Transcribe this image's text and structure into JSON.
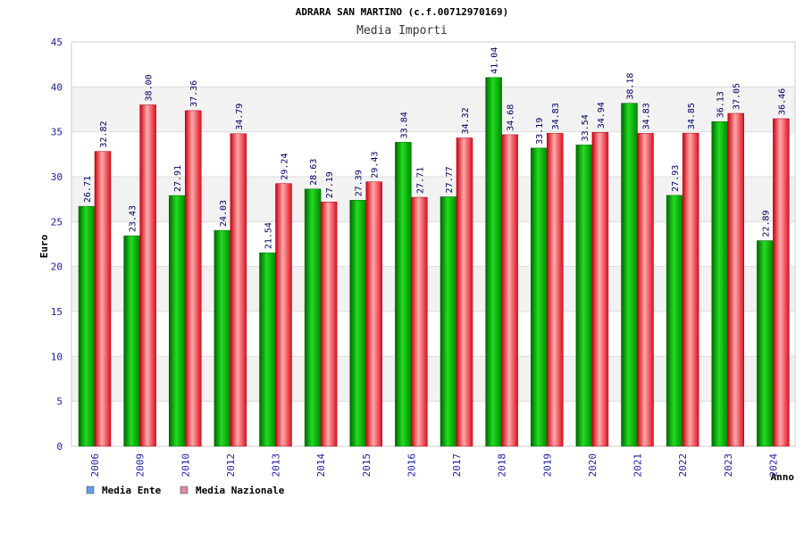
{
  "chart_data": {
    "type": "bar",
    "title": "ADRARA SAN MARTINO (c.f.00712970169)",
    "subtitle": "Media Importi",
    "xlabel": "Anno",
    "ylabel": "Euro",
    "ylim": [
      0,
      45
    ],
    "ytick_step": 5,
    "grid": true,
    "legend_position": "bottom-left",
    "categories": [
      "2006",
      "2009",
      "2010",
      "2012",
      "2013",
      "2014",
      "2015",
      "2016",
      "2017",
      "2018",
      "2019",
      "2020",
      "2021",
      "2022",
      "2023",
      "2024"
    ],
    "series": [
      {
        "name": "Media Ente",
        "color": "#00aa00",
        "legend_color": "#6699ee",
        "values": [
          26.71,
          23.43,
          27.91,
          24.03,
          21.54,
          28.63,
          27.39,
          33.84,
          27.77,
          41.04,
          33.19,
          33.54,
          38.18,
          27.93,
          36.13,
          22.89
        ],
        "labels": [
          "26.71",
          "23.43",
          "27.91",
          "24.03",
          "21.54",
          "28.63",
          "27.39",
          "33.84",
          "27.77",
          "41.04",
          "33.19",
          "33.54",
          "38.18",
          "27.93",
          "36.13",
          "22.89"
        ]
      },
      {
        "name": "Media Nazionale",
        "color": "#ee2233",
        "legend_color": "#dd88aa",
        "values": [
          32.82,
          38.0,
          37.36,
          34.79,
          29.24,
          27.19,
          29.43,
          27.71,
          34.32,
          34.68,
          34.83,
          34.94,
          34.83,
          34.85,
          37.05,
          36.46
        ],
        "labels": [
          "32.82",
          "38.00",
          "37.36",
          "34.79",
          "29.24",
          "27.19",
          "29.43",
          "27.71",
          "34.32",
          "34.68",
          "34.83",
          "34.94",
          "34.83",
          "34.85",
          "37.05",
          "36.46"
        ]
      }
    ]
  }
}
